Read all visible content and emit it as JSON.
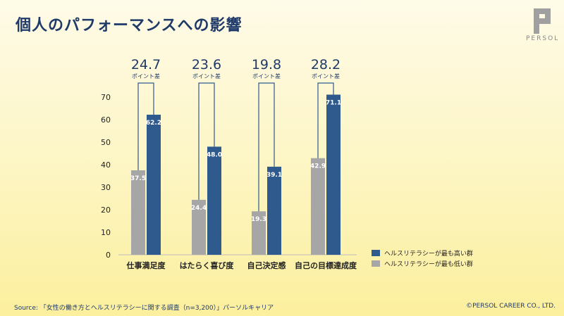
{
  "page": {
    "title": "個人のパフォーマンスへの影響",
    "logo_text": "PERSOL",
    "source": "Source: 「女性の働き方とヘルスリテラシーに関する調査（n=3,200）」パーソルキャリア",
    "copyright": "©PERSOL CAREER CO., LTD."
  },
  "colors": {
    "high": "#2e5a8e",
    "low": "#a6a6a6",
    "bracket": "#2e5a8e",
    "title": "#1f3a68"
  },
  "chart_data": {
    "type": "bar",
    "title": "個人のパフォーマンスへの影響",
    "categories": [
      "仕事満足度",
      "はたらく喜び度",
      "自己決定感",
      "自己の目標達成度"
    ],
    "series": [
      {
        "name": "ヘルスリテラシーが最も低い群",
        "values": [
          37.5,
          24.4,
          19.3,
          42.9
        ]
      },
      {
        "name": "ヘルスリテラシーが最も高い群",
        "values": [
          62.2,
          48.0,
          39.1,
          71.1
        ]
      }
    ],
    "value_labels": [
      [
        "37.5",
        "24.4",
        "19.3",
        "42.9"
      ],
      [
        "62.2",
        "48.0",
        "39.1",
        "71.1"
      ]
    ],
    "differences": [
      "24.7",
      "23.6",
      "19.8",
      "28.2"
    ],
    "difference_unit": "ポイント差",
    "yticks": [
      "0",
      "10",
      "20",
      "30",
      "40",
      "50",
      "60",
      "70"
    ],
    "ylim": [
      0,
      70
    ],
    "grid": false,
    "legend_position": "bottom-right"
  },
  "legend": {
    "items": [
      {
        "label": "ヘルスリテラシーが最も高い群"
      },
      {
        "label": "ヘルスリテラシーが最も低い群"
      }
    ]
  }
}
